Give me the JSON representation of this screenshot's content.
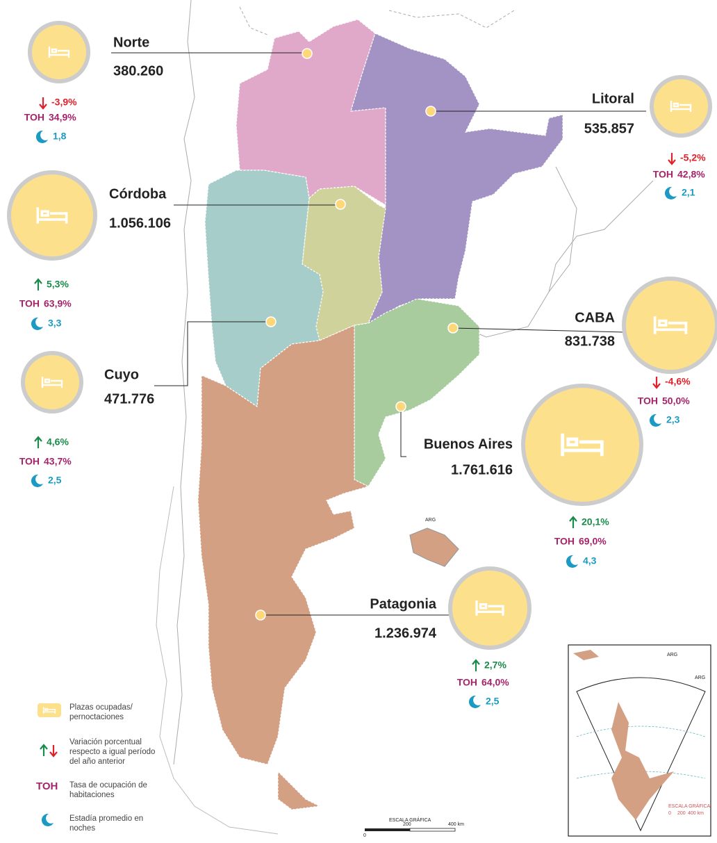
{
  "regions": [
    {
      "name": "Norte",
      "value": "380.260",
      "variation": "-3,9%",
      "toh": "34,9%",
      "stay": "1,8"
    },
    {
      "name": "Litoral",
      "value": "535.857",
      "variation": "-5,2%",
      "toh": "42,8%",
      "stay": "2,1"
    },
    {
      "name": "Córdoba",
      "value": "1.056.106",
      "variation": "5,3%",
      "toh": "63,9%",
      "stay": "3,3"
    },
    {
      "name": "Cuyo",
      "value": "471.776",
      "variation": "4,6%",
      "toh": "43,7%",
      "stay": "2,5"
    },
    {
      "name": "CABA",
      "value": "831.738",
      "variation": "-4,6%",
      "toh": "50,0%",
      "stay": "2,3"
    },
    {
      "name": "Buenos Aires",
      "value": "1.761.616",
      "variation": "20,1%",
      "toh": "69,0%",
      "stay": "4,3"
    },
    {
      "name": "Patagonia",
      "value": "1.236.974",
      "variation": "2,7%",
      "toh": "64,0%",
      "stay": "2,5"
    }
  ],
  "toh_label": "TOH",
  "legend": {
    "beds": [
      "Plazas ocupadas/",
      "pernoctaciones"
    ],
    "variation": [
      "Variación porcentual",
      "respecto a igual período",
      "del año anterior"
    ],
    "toh": [
      "Tasa de ocupación de",
      "habitaciones"
    ],
    "stay": [
      "Estadía promedio en",
      "noches"
    ]
  },
  "scale": {
    "title": "ESCALA GRÁFICA",
    "ticks": [
      "0",
      "200",
      "400 km"
    ]
  },
  "map_label": "ARG",
  "inset": {
    "labels": [
      "ARG",
      "ARG"
    ],
    "scale_title": "ESCALA GRÁFICA",
    "scale_ticks": [
      "0",
      "200",
      "400 km"
    ]
  }
}
